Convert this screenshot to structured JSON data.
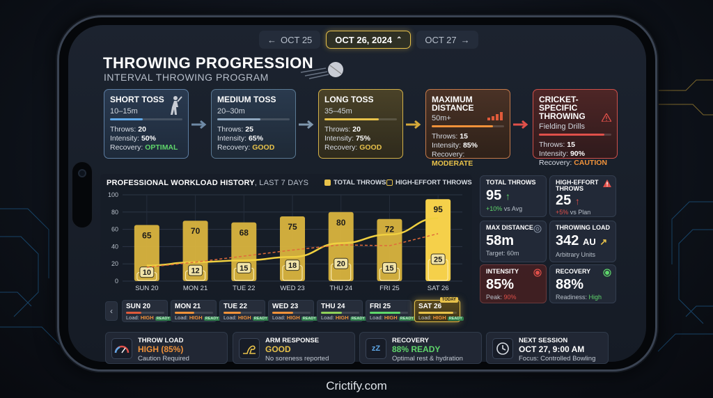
{
  "date_nav": {
    "prev_label": "OCT 25",
    "current_label": "OCT 26, 2024",
    "next_label": "OCT 27"
  },
  "header": {
    "title": "THROWING PROGRESSION",
    "subtitle": "INTERVAL THROWING PROGRAM"
  },
  "stages": [
    {
      "title": "SHORT TOSS",
      "range": "10–15m",
      "throws_label": "Throws:",
      "throws": "20",
      "intensity_label": "Intensity:",
      "intensity": "50%",
      "recovery_label": "Recovery:",
      "recovery": "OPTIMAL",
      "progress": 0.45,
      "color": "#5fa8e8"
    },
    {
      "title": "MEDIUM TOSS",
      "range": "20–30m",
      "throws_label": "Throws:",
      "throws": "25",
      "intensity_label": "Intensity:",
      "intensity": "65%",
      "recovery_label": "Recovery:",
      "recovery": "GOOD",
      "progress": 0.6,
      "color": "#8fa7be"
    },
    {
      "title": "LONG TOSS",
      "range": "35–45m",
      "throws_label": "Throws:",
      "throws": "20",
      "intensity_label": "Intensity:",
      "intensity": "75%",
      "recovery_label": "Recovery:",
      "recovery": "GOOD",
      "progress": 0.75,
      "color": "#e8c24a"
    },
    {
      "title": "MAXIMUM DISTANCE",
      "range": "50m+",
      "throws_label": "Throws:",
      "throws": "15",
      "intensity_label": "Intensity:",
      "intensity": "85%",
      "recovery_label": "Recovery:",
      "recovery": "MODERATE",
      "color": "#f0923a"
    },
    {
      "title": "CRICKET-SPECIFIC THROWING",
      "range": "Fielding Drills",
      "throws_label": "Throws:",
      "throws": "15",
      "intensity_label": "Intensity:",
      "intensity": "90%",
      "recovery_label": "Recovery:",
      "recovery": "CAUTION",
      "color": "#e0504a"
    }
  ],
  "workload": {
    "title": "PROFESSIONAL WORKLOAD HISTORY",
    "title_suffix": ", LAST 7 DAYS",
    "legend_total": "TOTAL THROWS",
    "legend_high": "HIGH-EFFORT THROWS"
  },
  "chart_data": {
    "type": "bar",
    "title": "PROFESSIONAL WORKLOAD HISTORY, LAST 7 DAYS",
    "categories": [
      "SUN 20",
      "MON 21",
      "TUE 22",
      "WED 23",
      "THU 24",
      "FRI 25",
      "SAT 26"
    ],
    "series": [
      {
        "name": "TOTAL THROWS",
        "values": [
          65,
          70,
          68,
          75,
          80,
          72,
          95
        ]
      },
      {
        "name": "HIGH-EFFORT THROWS",
        "values": [
          10,
          12,
          15,
          18,
          20,
          15,
          25
        ]
      }
    ],
    "trend_line": [
      18,
      22,
      24,
      28,
      44,
      54,
      73
    ],
    "y_ticks": [
      0,
      20,
      40,
      60,
      80,
      100
    ],
    "ylim": [
      0,
      100
    ],
    "grid": true,
    "legend_position": "top-right",
    "colors": {
      "total": "#e8c24a",
      "high": "#e8c24a",
      "trend": "#f0d040",
      "dashed": "#e06a3a"
    }
  },
  "days": [
    {
      "day": "SUN 20",
      "load_label": "Load:",
      "load": "HIGH",
      "ready": "READY",
      "progress": 0.4,
      "color": "#e05a3a"
    },
    {
      "day": "MON 21",
      "load_label": "Load:",
      "load": "HIGH",
      "ready": "READY",
      "progress": 0.5,
      "color": "#f0923a"
    },
    {
      "day": "TUE 22",
      "load_label": "Load:",
      "load": "HIGH",
      "ready": "READY",
      "progress": 0.45,
      "color": "#f0923a"
    },
    {
      "day": "WED 23",
      "load_label": "Load:",
      "load": "HIGH",
      "ready": "READY",
      "progress": 0.55,
      "color": "#f0923a"
    },
    {
      "day": "THU 24",
      "load_label": "Load:",
      "load": "HIGH",
      "ready": "READY",
      "progress": 0.55,
      "color": "#8fd05a"
    },
    {
      "day": "FRI 25",
      "load_label": "Load:",
      "load": "HIGH",
      "ready": "READY",
      "progress": 0.8,
      "color": "#5fd66b"
    },
    {
      "day": "SAT 26",
      "load_label": "Load:",
      "load": "HIGH",
      "ready": "READY",
      "progress": 0.9,
      "color": "#e8c24a",
      "tag": "TODAY"
    }
  ],
  "stats": {
    "total_throws": {
      "label": "TOTAL THROWS",
      "value": "95",
      "sub_change": "+10%",
      "sub_rest": " vs Avg"
    },
    "high_effort": {
      "label": "HIGH-EFFORT THROWS",
      "value": "25",
      "sub_change": "+5%",
      "sub_rest": " vs Plan"
    },
    "max_distance": {
      "label": "MAX DISTANCE",
      "value": "58m",
      "sub": "Target: 60m"
    },
    "throwing_load": {
      "label": "THROWING LOAD",
      "value": "342",
      "unit": "AU",
      "sub": "Arbitrary Units"
    },
    "intensity": {
      "label": "INTENSITY",
      "value": "85%",
      "sub_label": "Peak:",
      "sub_value": "90%"
    },
    "recovery": {
      "label": "RECOVERY",
      "value": "88%",
      "sub_label": "Readiness:",
      "sub_value": "High"
    }
  },
  "bottom": [
    {
      "label": "THROW LOAD",
      "value": "HIGH (85%)",
      "sub": "Caution Required",
      "color": "#f0923a",
      "icon": "gauge-icon"
    },
    {
      "label": "ARM RESPONSE",
      "value": "GOOD",
      "sub": "No soreness reported",
      "color": "#e8c24a",
      "icon": "arm-icon"
    },
    {
      "label": "RECOVERY",
      "value": "88% READY",
      "sub": "Optimal rest & hydration",
      "color": "#5fd66b",
      "icon": "sleep-icon"
    },
    {
      "label": "NEXT SESSION",
      "value": "OCT 27, 9:00 AM",
      "sub": "Focus: Controlled Bowling",
      "color": "#ffffff",
      "icon": "clock-icon"
    }
  ],
  "footer": "Crictify.com"
}
